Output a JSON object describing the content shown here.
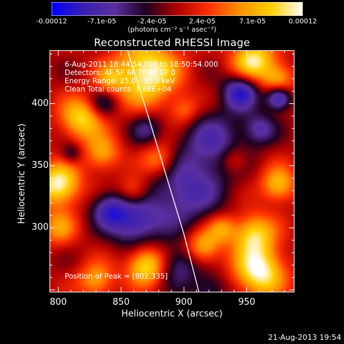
{
  "colorbar": {
    "tick_labels": [
      "-0.00012",
      "-7.1e-05",
      "-2.4e-05",
      "2.4e-05",
      "7.1e-05",
      "0.00012"
    ],
    "unit_label": "(photons cm⁻² s⁻¹ asec⁻²)",
    "min": -0.00012,
    "max": 0.00012,
    "colors": [
      "#0000ff",
      "#3a1fb0",
      "#5a2fa0",
      "#200020",
      "#b00000",
      "#ff3000",
      "#ff9000",
      "#ffd000",
      "#ffffff"
    ]
  },
  "annotations": {
    "time_range": "6-Aug-2011 18:44:54.000 to 18:50:54.000",
    "detectors": "Detectors: 4F 5F 6F 7F 8F 9F 0",
    "energy": "Energy Range: 25.0 - 50.0 keV",
    "clean": "Clean     Total counts: 7.68E+04",
    "peak": "Position of Peak = [802,335]"
  },
  "timestamp": "21-Aug-2013 19:54",
  "chart_data": {
    "type": "heatmap",
    "title": "Reconstructed RHESSI Image",
    "xlabel": "Heliocentric X (arcsec)",
    "ylabel": "Heliocentric Y (arcsec)",
    "xlim": [
      793,
      988
    ],
    "ylim": [
      248,
      443
    ],
    "x_ticks": [
      800,
      850,
      900,
      950
    ],
    "y_ticks": [
      300,
      350,
      400
    ],
    "limb_curve": {
      "x": [
        855,
        870,
        885,
        900,
        912
      ],
      "y": [
        443,
        395,
        345,
        295,
        248
      ]
    },
    "peak_position": [
      802,
      335
    ],
    "blobs": [
      {
        "x": 870,
        "y": 425,
        "v": 1.0,
        "s": 18
      },
      {
        "x": 818,
        "y": 388,
        "v": 0.8,
        "s": 12
      },
      {
        "x": 835,
        "y": 360,
        "v": 0.6,
        "s": 10
      },
      {
        "x": 800,
        "y": 335,
        "v": 1.0,
        "s": 12
      },
      {
        "x": 800,
        "y": 300,
        "v": 0.5,
        "s": 10
      },
      {
        "x": 880,
        "y": 355,
        "v": 0.6,
        "s": 10
      },
      {
        "x": 860,
        "y": 330,
        "v": 0.5,
        "s": 9
      },
      {
        "x": 870,
        "y": 270,
        "v": 0.9,
        "s": 11
      },
      {
        "x": 830,
        "y": 258,
        "v": 0.6,
        "s": 10
      },
      {
        "x": 915,
        "y": 285,
        "v": 0.7,
        "s": 10
      },
      {
        "x": 955,
        "y": 295,
        "v": 0.8,
        "s": 12
      },
      {
        "x": 960,
        "y": 265,
        "v": 1.0,
        "s": 14
      },
      {
        "x": 930,
        "y": 300,
        "v": 0.5,
        "s": 8
      },
      {
        "x": 975,
        "y": 335,
        "v": 0.7,
        "s": 10
      },
      {
        "x": 940,
        "y": 355,
        "v": 0.4,
        "s": 8
      },
      {
        "x": 955,
        "y": 435,
        "v": 0.9,
        "s": 12
      },
      {
        "x": 975,
        "y": 420,
        "v": 0.6,
        "s": 9
      },
      {
        "x": 840,
        "y": 420,
        "v": 0.4,
        "s": 8
      },
      {
        "x": 900,
        "y": 395,
        "v": 0.4,
        "s": 8
      },
      {
        "x": 925,
        "y": 370,
        "v": -0.5,
        "s": 18
      },
      {
        "x": 900,
        "y": 330,
        "v": -0.6,
        "s": 22
      },
      {
        "x": 860,
        "y": 305,
        "v": -0.7,
        "s": 14
      },
      {
        "x": 945,
        "y": 410,
        "v": -0.8,
        "s": 10
      },
      {
        "x": 975,
        "y": 405,
        "v": -0.9,
        "s": 7
      },
      {
        "x": 840,
        "y": 315,
        "v": -0.6,
        "s": 10
      },
      {
        "x": 895,
        "y": 270,
        "v": -0.5,
        "s": 12
      },
      {
        "x": 920,
        "y": 250,
        "v": -0.4,
        "s": 10
      },
      {
        "x": 835,
        "y": 400,
        "v": -0.4,
        "s": 8
      },
      {
        "x": 960,
        "y": 380,
        "v": -0.5,
        "s": 9
      },
      {
        "x": 870,
        "y": 380,
        "v": -0.4,
        "s": 9
      },
      {
        "x": 810,
        "y": 360,
        "v": -0.4,
        "s": 6
      }
    ]
  }
}
